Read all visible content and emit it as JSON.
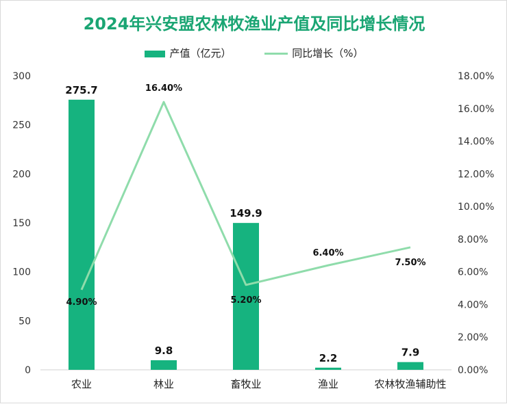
{
  "chart_data": {
    "type": "bar",
    "title": "2024年兴安盟农林牧渔业产值及同比增长情况",
    "categories": [
      "农业",
      "林业",
      "畜牧业",
      "渔业",
      "农林牧渔辅助性"
    ],
    "series": [
      {
        "name": "产值（亿元）",
        "type": "bar",
        "axis": "left",
        "values": [
          275.7,
          9.8,
          149.9,
          2.2,
          7.9
        ],
        "labels": [
          "275.7",
          "9.8",
          "149.9",
          "2.2",
          "7.9"
        ]
      },
      {
        "name": "同比增长（%）",
        "type": "line",
        "axis": "right",
        "values": [
          4.9,
          16.4,
          5.2,
          6.4,
          7.5
        ],
        "labels": [
          "4.90%",
          "16.40%",
          "5.20%",
          "6.40%",
          "7.50%"
        ]
      }
    ],
    "y_left": {
      "ylim": [
        0,
        300
      ],
      "ticks": [
        "0",
        "50",
        "100",
        "150",
        "200",
        "250",
        "300"
      ]
    },
    "y_right": {
      "ylim": [
        0,
        18
      ],
      "ticks": [
        "0.00%",
        "2.00%",
        "4.00%",
        "6.00%",
        "8.00%",
        "10.00%",
        "12.00%",
        "14.00%",
        "16.00%",
        "18.00%"
      ]
    },
    "grid": false,
    "legend": "top-center",
    "colors": {
      "bar": "#16b37f",
      "line": "#8fdcab",
      "title": "#1aa573"
    }
  }
}
